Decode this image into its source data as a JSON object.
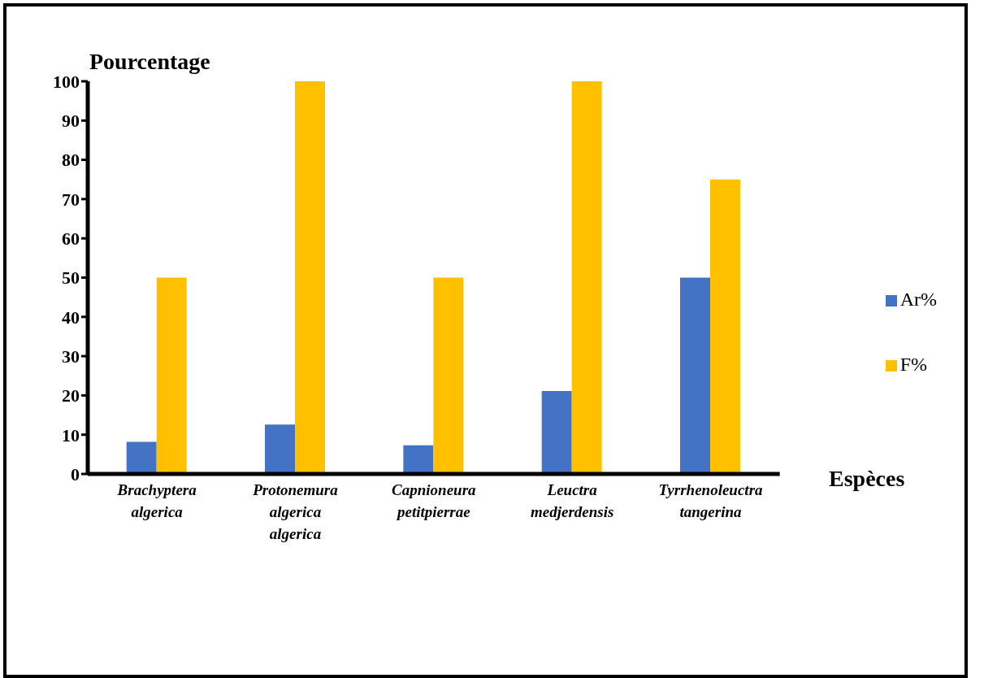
{
  "chart_data": {
    "type": "bar",
    "ylabel": "Pourcentage",
    "xlabel": "Espèces",
    "categories": [
      "Brachyptera algerica",
      "Protonemura algerica algerica",
      "Capnioneura petitpierrae",
      "Leuctra medjerdensis",
      "Tyrrhenoleuctra tangerina"
    ],
    "series": [
      {
        "name": "Ar%",
        "color": "#4472c4",
        "values": [
          8.2,
          12.6,
          7.3,
          21.1,
          50
        ]
      },
      {
        "name": "F%",
        "color": "#ffc000",
        "values": [
          50,
          100,
          50,
          100,
          75
        ]
      }
    ],
    "ylim": [
      0,
      100
    ],
    "yticks": [
      0,
      10,
      20,
      30,
      40,
      50,
      60,
      70,
      80,
      90,
      100
    ],
    "grid": false,
    "legend": "right"
  }
}
